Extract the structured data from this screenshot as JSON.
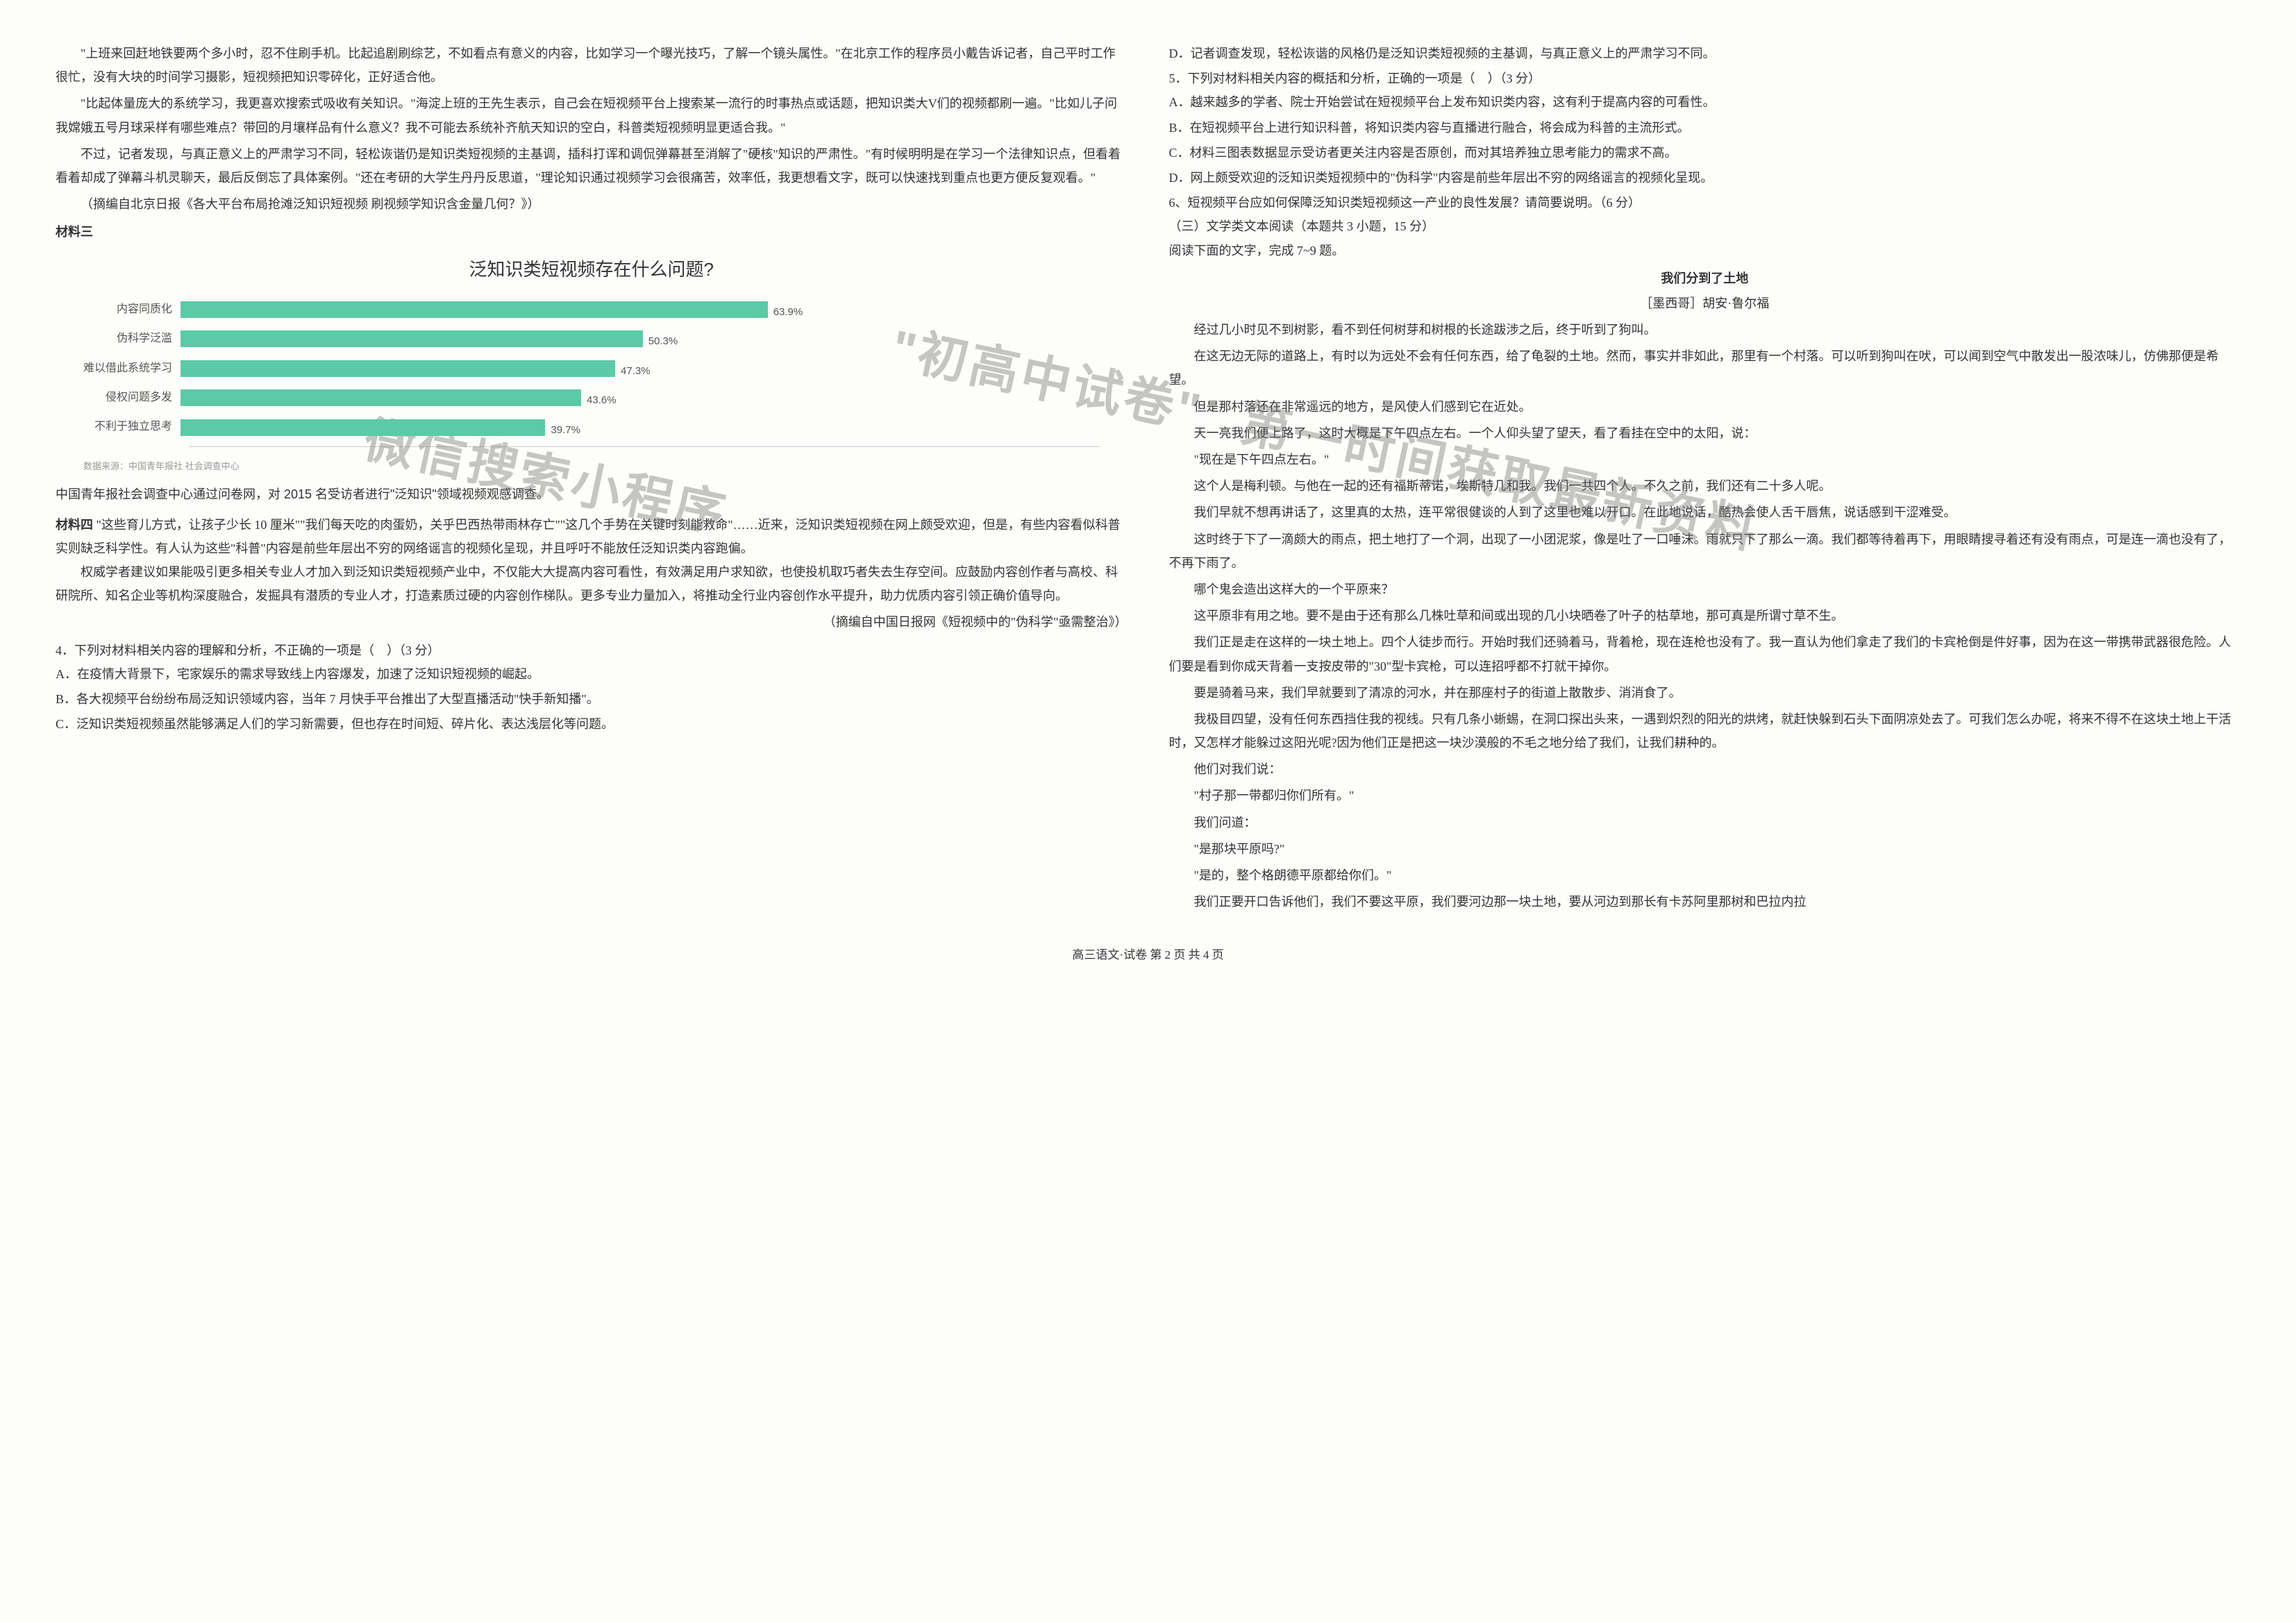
{
  "left": {
    "p1": "\"上班来回赶地铁要两个多小时，忍不住刷手机。比起追剧刷综艺，不如看点有意义的内容，比如学习一个曝光技巧，了解一个镜头属性。\"在北京工作的程序员小戴告诉记者，自己平时工作很忙，没有大块的时间学习摄影，短视频把知识零碎化，正好适合他。",
    "p2": "\"比起体量庞大的系统学习，我更喜欢搜索式吸收有关知识。\"海淀上班的王先生表示，自己会在短视频平台上搜索某一流行的时事热点或话题，把知识类大V们的视频都刷一遍。\"比如儿子问我嫦娥五号月球采样有哪些难点？带回的月壤样品有什么意义？我不可能去系统补齐航天知识的空白，科普类短视频明显更适合我。\"",
    "p3": "不过，记者发现，与真正意义上的严肃学习不同，轻松诙谐仍是知识类短视频的主基调，插科打诨和调侃弹幕甚至消解了\"硬核\"知识的严肃性。\"有时候明明是在学习一个法律知识点，但看着看着却成了弹幕斗机灵聊天，最后反倒忘了具体案例。\"还在考研的大学生丹丹反思道，\"理论知识通过视频学习会很痛苦，效率低，我更想看文字，既可以快速找到重点也更方便反复观看。\"",
    "credit1": "（摘编自北京日报《各大平台布局抢滩泛知识短视频 刷视频学知识含金量几何？》）",
    "mat3_label": "材料三",
    "chart": {
      "title": "泛知识类短视频存在什么问题?",
      "categories": [
        "内容同质化",
        "伪科学泛滥",
        "难以借此系统学习",
        "侵权问题多发",
        "不利于独立思考"
      ],
      "values": [
        63.9,
        50.3,
        47.3,
        43.6,
        39.7
      ],
      "max": 100,
      "bar_color": "#5cc9a7",
      "label_color": "#555555",
      "value_suffix": "%",
      "source": "数据来源：中国青年报社 社会调查中心"
    },
    "caption": "中国青年报社会调查中心通过问卷网，对 2015 名受访者进行\"泛知识\"领域视频观感调查。",
    "mat4_label": "材料四",
    "mat4_inline": "\"这些育儿方式，让孩子少长 10 厘米\"\"我们每天吃的肉蛋奶，关乎巴西热带雨林存亡\"\"这几个手势在关键时刻能救命\"……近来，泛知识类短视频在网上颇受欢迎，但是，有些内容看似科普实则缺乏科学性。有人认为这些\"科普\"内容是前些年层出不穷的网络谣言的视频化呈现，并且呼吁不能放任泛知识类内容跑偏。",
    "mat4_p2": "权威学者建议如果能吸引更多相关专业人才加入到泛知识类短视频产业中，不仅能大大提高内容可看性，有效满足用户求知欲，也使投机取巧者失去生存空间。应鼓励内容创作者与高校、科研院所、知名企业等机构深度融合，发掘具有潜质的专业人才，打造素质过硬的内容创作梯队。更多专业力量加入，将推动全行业内容创作水平提升，助力优质内容引领正确价值导向。",
    "credit2": "（摘编自中国日报网《短视频中的\"伪科学\"亟需整治》）",
    "q4": "4．下列对材料相关内容的理解和分析，不正确的一项是（　）（3 分）",
    "q4a": "A．在疫情大背景下，宅家娱乐的需求导致线上内容爆发，加速了泛知识短视频的崛起。",
    "q4b": "B．各大视频平台纷纷布局泛知识领域内容，当年 7 月快手平台推出了大型直播活动\"快手新知播\"。",
    "q4c": "C．泛知识类短视频虽然能够满足人们的学习新需要，但也存在时间短、碎片化、表达浅层化等问题。"
  },
  "right": {
    "q4d": "D．记者调查发现，轻松诙谐的风格仍是泛知识类短视频的主基调，与真正意义上的严肃学习不同。",
    "q5": "5．下列对材料相关内容的概括和分析，正确的一项是（　）（3 分）",
    "q5a": "A．越来越多的学者、院士开始尝试在短视频平台上发布知识类内容，这有利于提高内容的可看性。",
    "q5b": "B．在短视频平台上进行知识科普，将知识类内容与直播进行融合，将会成为科普的主流形式。",
    "q5c": "C．材料三图表数据显示受访者更关注内容是否原创，而对其培养独立思考能力的需求不高。",
    "q5d": "D．网上颇受欢迎的泛知识类短视频中的\"伪科学\"内容是前些年层出不穷的网络谣言的视频化呈现。",
    "q6": "6、短视频平台应如何保障泛知识类短视频这一产业的良性发展？请简要说明。（6 分）",
    "sec3": "（三）文学类文本阅读（本题共 3 小题，15 分）",
    "read": "阅读下面的文字，完成 7~9 题。",
    "title": "我们分到了土地",
    "author": "［墨西哥］胡安·鲁尔福",
    "s1": "经过几小时见不到树影，看不到任何树芽和树根的长途跋涉之后，终于听到了狗叫。",
    "s2": "在这无边无际的道路上，有时以为远处不会有任何东西，给了龟裂的土地。然而，事实并非如此，那里有一个村落。可以听到狗叫在吠，可以闻到空气中散发出一股浓味儿，仿佛那便是希望。",
    "s3": "但是那村落还在非常遥远的地方，是风使人们感到它在近处。",
    "s4": "天一亮我们便上路了，这时大概是下午四点左右。一个人仰头望了望天，看了看挂在空中的太阳，说：",
    "s5": "\"现在是下午四点左右。\"",
    "s6": "这个人是梅利顿。与他在一起的还有福斯蒂诺，埃斯特几和我。我们一共四个人。不久之前，我们还有二十多人呢。",
    "s7": "我们早就不想再讲话了，这里真的太热，连平常很健谈的人到了这里也难以开口。在此地说话，酷热会使人舌干唇焦，说话感到干涩难受。",
    "s8": "这时终于下了一滴颇大的雨点，把土地打了一个洞，出现了一小团泥浆，像是吐了一口唾沫。雨就只下了那么一滴。我们都等待着再下，用眼睛搜寻着还有没有雨点，可是连一滴也没有了，不再下雨了。",
    "s9": "哪个鬼会造出这样大的一个平原来？",
    "s10": "这平原非有用之地。要不是由于还有那么几株吐草和间或出现的几小块晒卷了叶子的枯草地，那可真是所谓寸草不生。",
    "s11": "我们正是走在这样的一块土地上。四个人徒步而行。开始时我们还骑着马，背着枪，现在连枪也没有了。我一直认为他们拿走了我们的卡宾枪倒是件好事，因为在这一带携带武器很危险。人们要是看到你成天背着一支按皮带的\"30\"型卡宾枪，可以连招呼都不打就干掉你。",
    "s12": "要是骑着马来，我们早就要到了清凉的河水，并在那座村子的街道上散散步、消消食了。",
    "s13": "我极目四望，没有任何东西挡住我的视线。只有几条小蜥蜴，在洞口探出头来，一遇到炽烈的阳光的烘烤，就赶快躲到石头下面阴凉处去了。可我们怎么办呢，将来不得不在这块土地上干活时，又怎样才能躲过这阳光呢?因为他们正是把这一块沙漠般的不毛之地分给了我们，让我们耕种的。",
    "s14": "他们对我们说：",
    "s15": "\"村子那一带都归你们所有。\"",
    "s16": "我们问道：",
    "s17": "\"是那块平原吗?\"",
    "s18": "\"是的，整个格朗德平原都给你们。\"",
    "s19": "我们正要开口告诉他们，我们不要这平原，我们要河边那一块土地，要从河边到那长有卡苏阿里那树和巴拉内拉"
  },
  "footer": "高三语文·试卷 第 2 页 共 4 页",
  "watermarks": {
    "a": "微信搜索小程序",
    "b": "\"初高中试卷\"",
    "c": "第一时间获取最新资料"
  }
}
